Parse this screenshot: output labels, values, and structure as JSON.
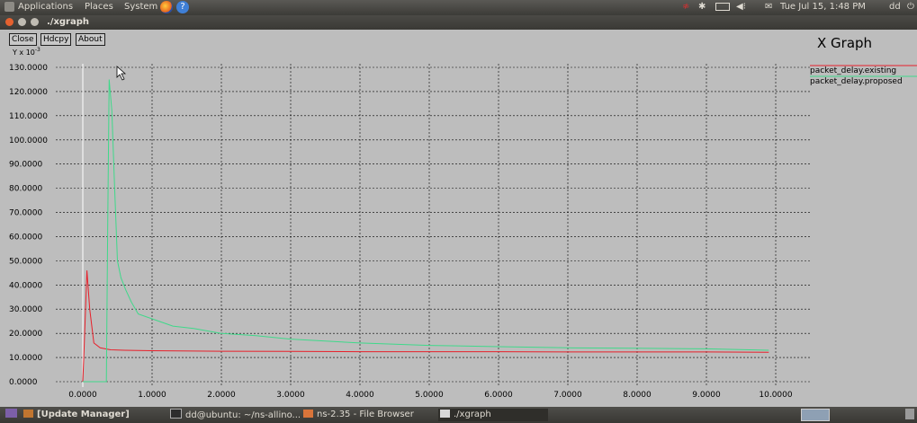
{
  "top_panel": {
    "menus": [
      "Applications",
      "Places",
      "System"
    ],
    "clock": "Tue Jul 15,  1:48 PM",
    "user": "dd"
  },
  "window": {
    "title": "./xgraph"
  },
  "buttons": {
    "close": "Close",
    "hdcpy": "Hdcpy",
    "about": "About"
  },
  "graph": {
    "title": "X Graph"
  },
  "chart_data": {
    "type": "line",
    "title": "X Graph",
    "ylabel": "Y x 10-3",
    "xlabel": "",
    "xlim": [
      0,
      10
    ],
    "ylim": [
      0,
      130
    ],
    "grid": true,
    "legend": "top-right",
    "x_ticks": [
      "0.0000",
      "1.0000",
      "2.0000",
      "3.0000",
      "4.0000",
      "5.0000",
      "6.0000",
      "7.0000",
      "8.0000",
      "9.0000",
      "10.0000"
    ],
    "y_ticks": [
      "0.0000",
      "10.0000",
      "20.0000",
      "30.0000",
      "40.0000",
      "50.0000",
      "60.0000",
      "70.0000",
      "80.0000",
      "90.0000",
      "100.0000",
      "110.0000",
      "120.0000",
      "130.0000"
    ],
    "series": [
      {
        "name": "packet_delay.existing",
        "color": "#e8202a",
        "x": [
          0.0,
          0.02,
          0.06,
          0.1,
          0.16,
          0.25,
          0.4,
          0.6,
          1.0,
          2.0,
          3.0,
          4.0,
          5.0,
          6.0,
          7.0,
          8.0,
          9.0,
          9.9
        ],
        "y": [
          0.0,
          14.0,
          46.0,
          30.0,
          16.0,
          14.0,
          13.2,
          13.0,
          12.8,
          12.6,
          12.5,
          12.4,
          12.4,
          12.4,
          12.3,
          12.3,
          12.3,
          12.2
        ]
      },
      {
        "name": "packet_delay.proposed",
        "color": "#3fd98a",
        "x": [
          0.0,
          0.34,
          0.36,
          0.38,
          0.42,
          0.46,
          0.5,
          0.55,
          0.62,
          0.7,
          0.8,
          1.0,
          1.3,
          1.6,
          2.0,
          2.5,
          3.0,
          4.0,
          5.0,
          6.0,
          7.0,
          8.0,
          9.0,
          9.9
        ],
        "y": [
          0.0,
          0.0,
          65.0,
          125.0,
          112.0,
          80.0,
          50.0,
          43.0,
          38.0,
          33.0,
          28.0,
          26.0,
          23.0,
          22.0,
          20.0,
          19.0,
          17.6,
          16.0,
          15.0,
          14.5,
          14.0,
          13.8,
          13.6,
          13.0
        ]
      }
    ]
  },
  "taskbar": {
    "items": [
      "[Update Manager]",
      "dd@ubuntu: ~/ns-allino...",
      "ns-2.35 - File Browser",
      "./xgraph"
    ]
  }
}
